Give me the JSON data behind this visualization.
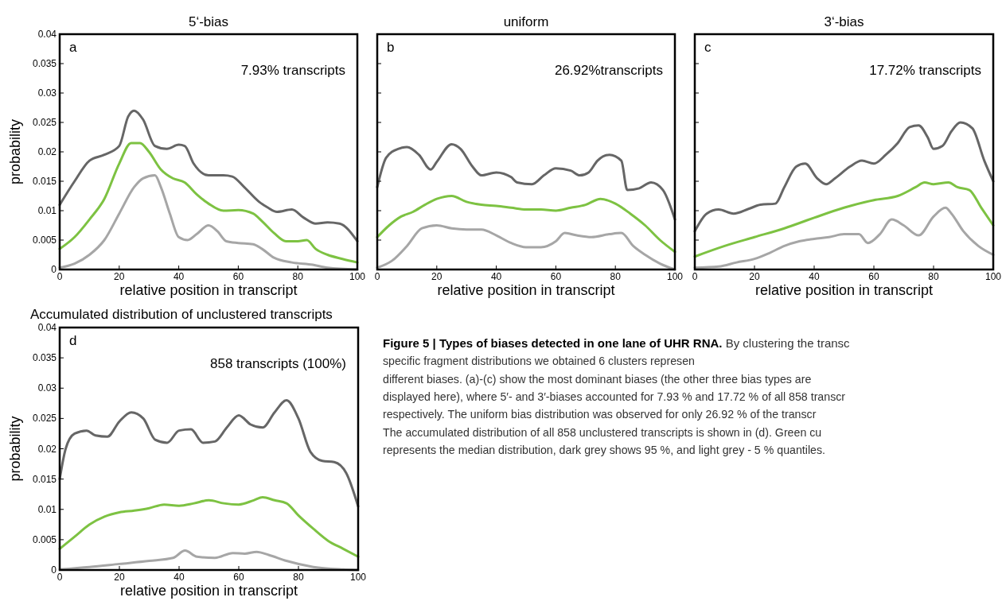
{
  "chart_data": [
    {
      "type": "line",
      "title": "5‘-bias",
      "xlabel": "relative position in transcript",
      "ylabel": "probability",
      "xlim": [
        0,
        100
      ],
      "xticks": [
        0,
        20,
        40,
        60,
        80,
        100
      ],
      "ylim": [
        0,
        0.04
      ],
      "yticks": [
        0,
        0.005,
        0.01,
        0.015,
        0.02,
        0.025,
        0.03,
        0.035,
        0.04
      ],
      "annotations": [
        "a",
        "7.93% transcripts"
      ],
      "series": [
        {
          "color": "#666666",
          "x": [
            0,
            5,
            10,
            15,
            20,
            23,
            25,
            28,
            32,
            36,
            40,
            42,
            45,
            50,
            55,
            58,
            62,
            67,
            70,
            73,
            78,
            82,
            86,
            90,
            94,
            100
          ],
          "values": [
            0.011,
            0.015,
            0.0185,
            0.0195,
            0.021,
            0.026,
            0.027,
            0.0255,
            0.021,
            0.0205,
            0.0212,
            0.021,
            0.018,
            0.016,
            0.016,
            0.0158,
            0.014,
            0.0115,
            0.0105,
            0.0098,
            0.0102,
            0.0088,
            0.0078,
            0.008,
            0.0078,
            0.0048
          ]
        },
        {
          "color": "#7dc242",
          "x": [
            0,
            5,
            10,
            15,
            20,
            24,
            27,
            30,
            34,
            38,
            42,
            46,
            50,
            55,
            60,
            65,
            68,
            72,
            76,
            80,
            83,
            86,
            90,
            95,
            100
          ],
          "values": [
            0.0035,
            0.0055,
            0.0085,
            0.012,
            0.018,
            0.0215,
            0.0215,
            0.02,
            0.017,
            0.0155,
            0.0148,
            0.0128,
            0.0112,
            0.01,
            0.0101,
            0.0095,
            0.0082,
            0.0062,
            0.0048,
            0.0048,
            0.005,
            0.0035,
            0.0025,
            0.0018,
            0.0012
          ]
        },
        {
          "color": "#a6a6a6",
          "x": [
            0,
            5,
            10,
            15,
            20,
            25,
            28,
            32,
            34,
            37,
            40,
            43,
            46,
            50,
            53,
            56,
            60,
            65,
            68,
            72,
            78,
            85,
            90,
            100
          ],
          "values": [
            0.0003,
            0.001,
            0.0025,
            0.005,
            0.0095,
            0.014,
            0.0155,
            0.016,
            0.014,
            0.0095,
            0.0055,
            0.005,
            0.006,
            0.0075,
            0.0065,
            0.0048,
            0.0045,
            0.0043,
            0.0035,
            0.002,
            0.0012,
            0.0008,
            0.0003,
            0
          ]
        }
      ]
    },
    {
      "type": "line",
      "title": "uniform",
      "xlabel": "relative position in transcript",
      "xlim": [
        0,
        100
      ],
      "xticks": [
        0,
        20,
        40,
        60,
        80,
        100
      ],
      "ylim": [
        0,
        0.04
      ],
      "yticks": [
        0,
        0.005,
        0.01,
        0.015,
        0.02,
        0.025,
        0.03,
        0.035,
        0.04
      ],
      "tick_labels": "x",
      "annotations": [
        "b",
        "26.92%transcripts"
      ],
      "series": [
        {
          "color": "#666666",
          "x": [
            0,
            3,
            7,
            10,
            14,
            18,
            20,
            25,
            28,
            32,
            35,
            40,
            45,
            47,
            52,
            56,
            60,
            65,
            68,
            71,
            74,
            78,
            82,
            84,
            88,
            92,
            96,
            100
          ],
          "values": [
            0.014,
            0.019,
            0.0205,
            0.0208,
            0.0195,
            0.017,
            0.0183,
            0.0213,
            0.0205,
            0.0175,
            0.016,
            0.0165,
            0.0157,
            0.0148,
            0.0145,
            0.016,
            0.0172,
            0.0168,
            0.016,
            0.0165,
            0.0185,
            0.0195,
            0.0185,
            0.0135,
            0.0138,
            0.0148,
            0.0135,
            0.0085
          ]
        },
        {
          "color": "#7dc242",
          "x": [
            0,
            4,
            8,
            12,
            16,
            20,
            25,
            30,
            35,
            40,
            45,
            50,
            55,
            60,
            65,
            70,
            75,
            80,
            85,
            90,
            95,
            100
          ],
          "values": [
            0.0055,
            0.0075,
            0.009,
            0.0098,
            0.011,
            0.012,
            0.0125,
            0.0115,
            0.011,
            0.0108,
            0.0105,
            0.0102,
            0.0102,
            0.01,
            0.0105,
            0.011,
            0.012,
            0.0112,
            0.0095,
            0.0075,
            0.005,
            0.003
          ]
        },
        {
          "color": "#a6a6a6",
          "x": [
            0,
            5,
            10,
            15,
            20,
            25,
            30,
            35,
            40,
            45,
            50,
            55,
            60,
            63,
            67,
            72,
            78,
            82,
            86,
            90,
            95,
            100
          ],
          "values": [
            0.0003,
            0.0015,
            0.004,
            0.007,
            0.0075,
            0.007,
            0.0068,
            0.0068,
            0.0058,
            0.0045,
            0.0038,
            0.0038,
            0.0048,
            0.0062,
            0.0058,
            0.0055,
            0.006,
            0.0062,
            0.004,
            0.0025,
            0.001,
            0
          ]
        }
      ]
    },
    {
      "type": "line",
      "title": "3‘-bias",
      "xlabel": "relative position in transcript",
      "xlim": [
        0,
        100
      ],
      "xticks": [
        0,
        20,
        40,
        60,
        80,
        100
      ],
      "ylim": [
        0,
        0.04
      ],
      "yticks": [
        0,
        0.005,
        0.01,
        0.015,
        0.02,
        0.025,
        0.03,
        0.035,
        0.04
      ],
      "tick_labels": "x",
      "annotations": [
        "c",
        "17.72% transcripts"
      ],
      "series": [
        {
          "color": "#666666",
          "x": [
            0,
            4,
            8,
            13,
            18,
            22,
            27,
            30,
            34,
            37,
            41,
            44,
            47,
            52,
            56,
            60,
            64,
            68,
            72,
            75,
            78,
            80,
            83,
            86,
            89,
            93,
            97,
            100
          ],
          "values": [
            0.0065,
            0.0095,
            0.0102,
            0.0095,
            0.0103,
            0.011,
            0.0112,
            0.014,
            0.0175,
            0.018,
            0.0155,
            0.0145,
            0.0155,
            0.0175,
            0.0185,
            0.018,
            0.0195,
            0.0215,
            0.0242,
            0.0245,
            0.0225,
            0.0205,
            0.021,
            0.0235,
            0.025,
            0.024,
            0.0185,
            0.015
          ]
        },
        {
          "color": "#7dc242",
          "x": [
            0,
            10,
            20,
            30,
            40,
            50,
            60,
            68,
            74,
            77,
            80,
            85,
            88,
            92,
            96,
            100
          ],
          "values": [
            0.0022,
            0.004,
            0.0055,
            0.007,
            0.0088,
            0.0105,
            0.0118,
            0.0125,
            0.014,
            0.0148,
            0.0145,
            0.0148,
            0.014,
            0.0135,
            0.0105,
            0.0075
          ]
        },
        {
          "color": "#a6a6a6",
          "x": [
            0,
            8,
            14,
            20,
            25,
            30,
            35,
            40,
            45,
            50,
            55,
            58,
            62,
            66,
            70,
            75,
            80,
            84,
            86,
            90,
            95,
            100
          ],
          "values": [
            0.0003,
            0.0005,
            0.0012,
            0.0018,
            0.0028,
            0.004,
            0.0048,
            0.0052,
            0.0055,
            0.006,
            0.006,
            0.0045,
            0.006,
            0.0085,
            0.0075,
            0.0058,
            0.009,
            0.0105,
            0.0095,
            0.0065,
            0.004,
            0.0025
          ]
        }
      ]
    },
    {
      "type": "line",
      "title": "Accumulated distribution of unclustered transcripts",
      "xlabel": "relative position in transcript",
      "ylabel": "probability",
      "xlim": [
        0,
        100
      ],
      "xticks": [
        0,
        20,
        40,
        60,
        80,
        100
      ],
      "ylim": [
        0,
        0.04
      ],
      "yticks": [
        0,
        0.005,
        0.01,
        0.015,
        0.02,
        0.025,
        0.03,
        0.035,
        0.04
      ],
      "annotations": [
        "d",
        "858 transcripts (100%)"
      ],
      "series": [
        {
          "color": "#666666",
          "x": [
            0,
            2,
            5,
            9,
            12,
            16,
            20,
            24,
            28,
            32,
            36,
            40,
            44,
            48,
            52,
            56,
            60,
            64,
            68,
            72,
            76,
            80,
            84,
            88,
            92,
            96,
            100
          ],
          "values": [
            0.015,
            0.02,
            0.0225,
            0.023,
            0.0222,
            0.022,
            0.0245,
            0.026,
            0.025,
            0.0215,
            0.021,
            0.023,
            0.0232,
            0.021,
            0.0212,
            0.0235,
            0.0255,
            0.024,
            0.0235,
            0.026,
            0.028,
            0.025,
            0.0195,
            0.018,
            0.0178,
            0.016,
            0.0105
          ]
        },
        {
          "color": "#7dc242",
          "x": [
            0,
            5,
            10,
            15,
            20,
            25,
            30,
            35,
            40,
            45,
            50,
            55,
            60,
            65,
            68,
            72,
            76,
            80,
            85,
            90,
            95,
            100
          ],
          "values": [
            0.0035,
            0.0055,
            0.0075,
            0.0088,
            0.0095,
            0.0098,
            0.0102,
            0.0108,
            0.0106,
            0.011,
            0.0115,
            0.011,
            0.0108,
            0.0115,
            0.012,
            0.0115,
            0.011,
            0.009,
            0.0068,
            0.0048,
            0.0035,
            0.0022
          ]
        },
        {
          "color": "#a6a6a6",
          "x": [
            0,
            10,
            20,
            30,
            38,
            42,
            46,
            52,
            58,
            62,
            66,
            70,
            76,
            85,
            95,
            100
          ],
          "values": [
            0.0001,
            0.0005,
            0.001,
            0.0015,
            0.002,
            0.0032,
            0.0022,
            0.002,
            0.0028,
            0.0027,
            0.003,
            0.0025,
            0.0015,
            0.0005,
            0.0001,
            0
          ]
        }
      ]
    },
    {
      "type": "other",
      "title": "Figure 5 | Types of biases detected in one lane of UHR RNA.",
      "annotations": [
        " By clustering the transc",
        "specific fragment distributions we obtained 6 clusters represen",
        "different biases. (a)-(c) show the most dominant biases (the other three bias types are",
        "displayed here), where 5′- and 3′-biases accounted for 7.93 % and 17.72 % of all 858 transcr",
        "respectively. The uniform bias distribution was observed for only 26.92 % of the transcr",
        "The accumulated distribution of all 858 unclustered transcripts is shown in (d). Green cu",
        "represents the median distribution, dark grey shows 95 %, and light grey - 5 % quantiles."
      ]
    }
  ]
}
